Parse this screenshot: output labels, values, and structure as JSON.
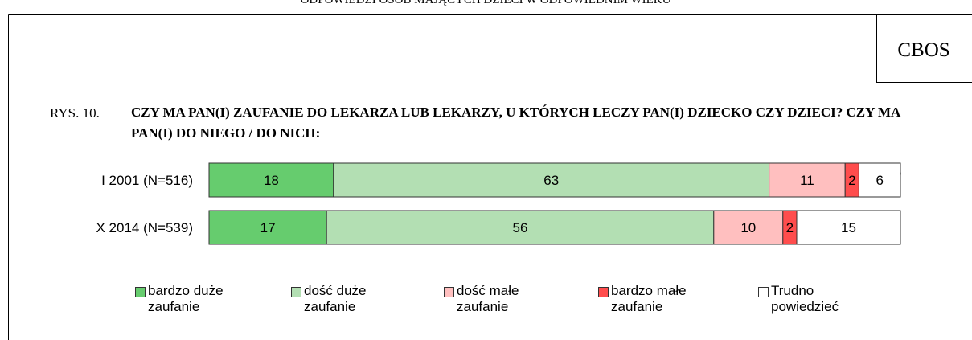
{
  "header": {
    "running_title": "ODPOWIEDZI OSÓB MAJĄCYCH DZIECI W ODPOWIEDNIM WIEKU",
    "logo": "CBOS"
  },
  "chart_data": {
    "type": "stacked_bar_horizontal",
    "figure_label": "RYS. 10.",
    "title": "CZY MA PAN(I) ZAUFANIE DO LEKARZA LUB LEKARZY, U KTÓRYCH LECZY PAN(I) DZIECKO CZY DZIECI? CZY MA PAN(I) DO NIEGO / DO NICH:",
    "unit_label": "(%)",
    "xlim": [
      0,
      100
    ],
    "categories": [
      "I 2001 (N=516)",
      "X 2014 (N=539)"
    ],
    "series": [
      {
        "name": "bardzo duże zaufanie",
        "color": "#66cc6e",
        "values": [
          18,
          17
        ]
      },
      {
        "name": "dość duże zaufanie",
        "color": "#b3dfb3",
        "values": [
          63,
          56
        ]
      },
      {
        "name": "dość małe zaufanie",
        "color": "#ffbfbf",
        "values": [
          11,
          10
        ]
      },
      {
        "name": "bardzo małe zaufanie",
        "color": "#ff4d4d",
        "values": [
          2,
          2
        ]
      },
      {
        "name": "Trudno powiedzieć",
        "color": "#ffffff",
        "values": [
          6,
          15
        ]
      }
    ]
  }
}
